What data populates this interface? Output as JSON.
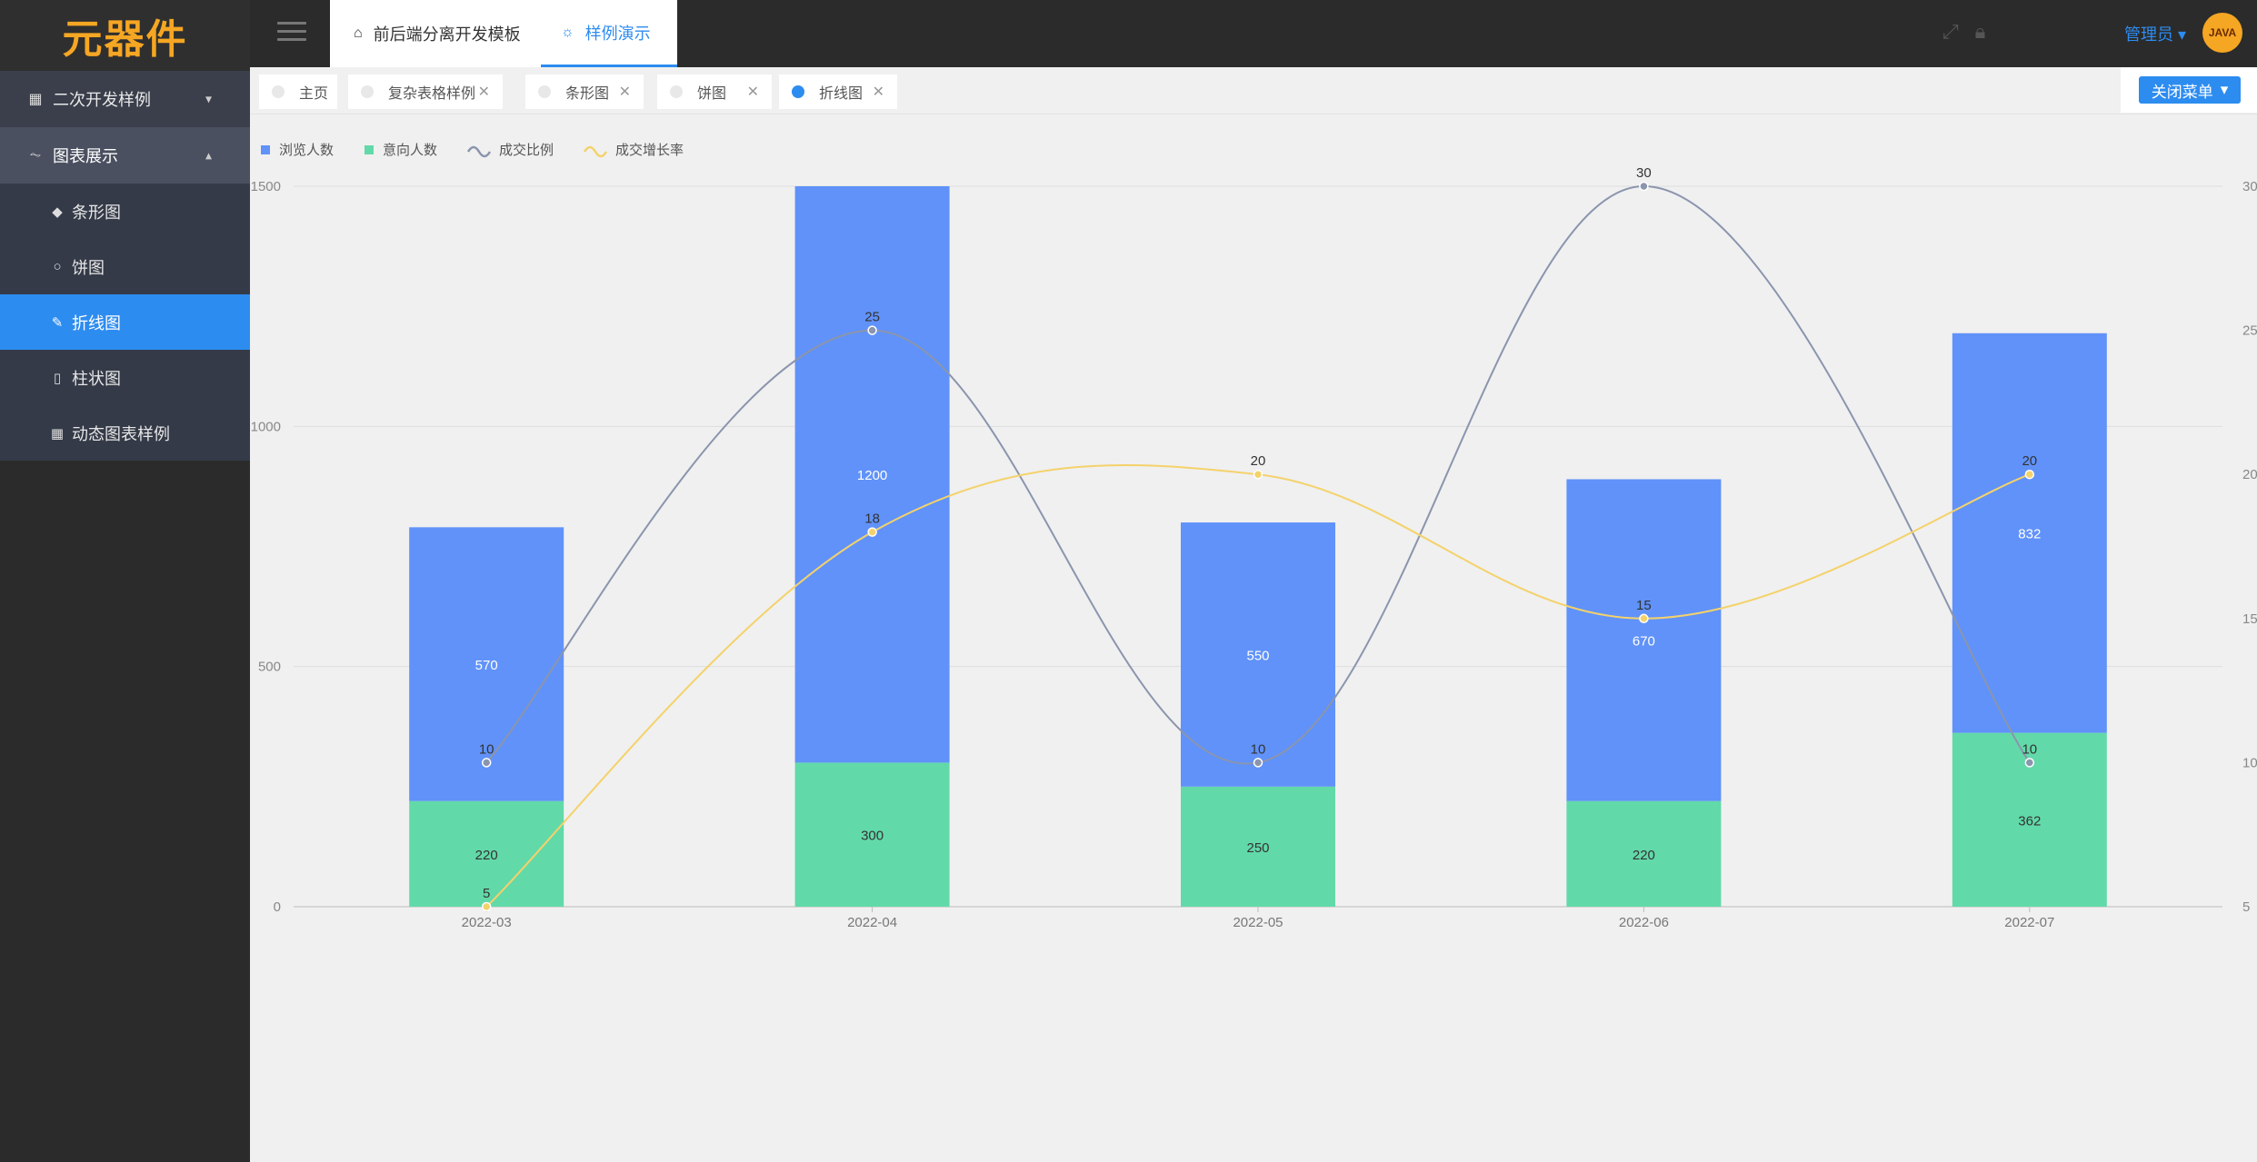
{
  "app": {
    "logo": "元器件"
  },
  "sidebar": {
    "groups": [
      {
        "label": "二次开发样例",
        "icon": "grid-icon"
      },
      {
        "label": "图表展示",
        "icon": "pulse-icon"
      }
    ],
    "items": [
      {
        "label": "条形图",
        "icon": "tag-icon"
      },
      {
        "label": "饼图",
        "icon": "circle-icon"
      },
      {
        "label": "折线图",
        "icon": "pen-icon"
      },
      {
        "label": "柱状图",
        "icon": "phone-icon"
      },
      {
        "label": "动态图表样例",
        "icon": "grid-icon"
      }
    ]
  },
  "header": {
    "tabs": [
      {
        "label": "前后端分离开发模板",
        "icon": "home-icon"
      },
      {
        "label": "样例演示",
        "icon": "bulb-icon"
      }
    ],
    "user": "管理员",
    "avatar_text": "JAVA"
  },
  "pagetabs": {
    "items": [
      {
        "label": "主页",
        "closable": false
      },
      {
        "label": "复杂表格样例",
        "closable": true
      },
      {
        "label": "条形图",
        "closable": true
      },
      {
        "label": "饼图",
        "closable": true
      },
      {
        "label": "折线图",
        "closable": true
      }
    ],
    "close_menu": "关闭菜单"
  },
  "chart_data": {
    "type": "bar",
    "categories": [
      "2022-03",
      "2022-04",
      "2022-05",
      "2022-06",
      "2022-07"
    ],
    "series": [
      {
        "name": "浏览人数",
        "type": "bar",
        "stack": true,
        "color": "#6092f9",
        "values": [
          570,
          1200,
          550,
          670,
          832
        ]
      },
      {
        "name": "意向人数",
        "type": "bar",
        "stack": true,
        "color": "#62d9a9",
        "values": [
          220,
          300,
          250,
          220,
          362
        ]
      },
      {
        "name": "成交比例",
        "type": "line",
        "axis": "right",
        "color": "#8b95ad",
        "values": [
          10,
          25,
          10,
          30,
          10
        ]
      },
      {
        "name": "成交增长率",
        "type": "line",
        "axis": "right",
        "color": "#f4d26b",
        "values": [
          5,
          18,
          20,
          15,
          20
        ]
      }
    ],
    "y_left": {
      "ticks": [
        0,
        500,
        1000,
        1500
      ],
      "range": [
        0,
        1500
      ]
    },
    "y_right": {
      "ticks": [
        5,
        10,
        15,
        20,
        25,
        30
      ],
      "range": [
        5,
        30
      ]
    },
    "legend": "top-left"
  }
}
